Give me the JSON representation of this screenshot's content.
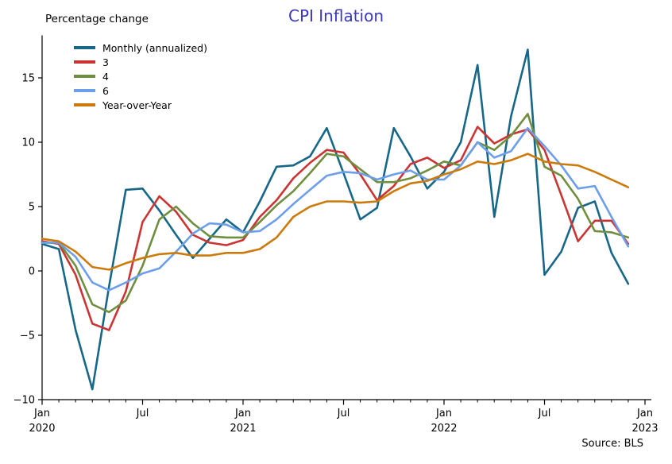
{
  "title": "CPI Inflation",
  "axis_unit_label": "Percentage change",
  "source": "Source: BLS",
  "colors": {
    "title": "#3b36c4",
    "axis": "#000000",
    "background": "#ffffff"
  },
  "chart_data": {
    "type": "line",
    "title": "CPI Inflation",
    "ylabel": "Percentage change",
    "grid": false,
    "legend_position": "upper left",
    "ylim": [
      -10,
      18.3
    ],
    "yticks": [
      -10,
      -5,
      0,
      5,
      10,
      15
    ],
    "x_major_ticks": [
      {
        "month_index": 0,
        "label": "Jan",
        "year": "2020"
      },
      {
        "month_index": 6,
        "label": "Jul",
        "year": ""
      },
      {
        "month_index": 12,
        "label": "Jan",
        "year": "2021"
      },
      {
        "month_index": 18,
        "label": "Jul",
        "year": ""
      },
      {
        "month_index": 24,
        "label": "Jan",
        "year": "2022"
      },
      {
        "month_index": 30,
        "label": "Jul",
        "year": ""
      },
      {
        "month_index": 36,
        "label": "Jan",
        "year": "2023"
      }
    ],
    "x": [
      "2020-01",
      "2020-02",
      "2020-03",
      "2020-04",
      "2020-05",
      "2020-06",
      "2020-07",
      "2020-08",
      "2020-09",
      "2020-10",
      "2020-11",
      "2020-12",
      "2021-01",
      "2021-02",
      "2021-03",
      "2021-04",
      "2021-05",
      "2021-06",
      "2021-07",
      "2021-08",
      "2021-09",
      "2021-10",
      "2021-11",
      "2021-12",
      "2022-01",
      "2022-02",
      "2022-03",
      "2022-04",
      "2022-05",
      "2022-06",
      "2022-07",
      "2022-08",
      "2022-09",
      "2022-10",
      "2022-11",
      "2022-12"
    ],
    "series": [
      {
        "name": "Monthly (annualized)",
        "color": "#176888",
        "values": [
          2.1,
          1.7,
          -4.6,
          -9.2,
          -1.2,
          6.3,
          6.4,
          4.7,
          2.8,
          1.0,
          2.5,
          4.0,
          3.0,
          5.4,
          8.1,
          8.2,
          8.9,
          11.1,
          7.6,
          4.0,
          4.9,
          11.1,
          8.9,
          6.4,
          7.7,
          10.0,
          16.0,
          4.2,
          12.0,
          17.2,
          -0.3,
          1.5,
          4.9,
          5.4,
          1.4,
          -1.0
        ]
      },
      {
        "name": "3",
        "color": "#cc3433",
        "values": [
          2.3,
          2.1,
          -0.3,
          -4.1,
          -4.6,
          -1.6,
          3.8,
          5.8,
          4.6,
          2.8,
          2.2,
          2.0,
          2.4,
          4.2,
          5.5,
          7.2,
          8.4,
          9.4,
          9.2,
          7.5,
          5.5,
          6.6,
          8.3,
          8.8,
          8.0,
          8.6,
          11.2,
          9.9,
          10.6,
          11.0,
          9.4,
          5.9,
          2.3,
          3.9,
          3.9,
          2.1
        ]
      },
      {
        "name": "4",
        "color": "#6f8f3e",
        "values": [
          2.2,
          2.2,
          0.4,
          -2.6,
          -3.2,
          -2.3,
          0.4,
          4.0,
          5.0,
          3.7,
          2.7,
          2.6,
          2.6,
          3.8,
          5.1,
          6.2,
          7.6,
          9.1,
          8.9,
          7.9,
          6.9,
          6.9,
          7.2,
          7.8,
          8.5,
          8.2,
          10.0,
          9.4,
          10.5,
          12.2,
          8.1,
          7.4,
          5.6,
          3.1,
          3.0,
          2.6
        ]
      },
      {
        "name": "6",
        "color": "#6d9eea",
        "values": [
          2.2,
          2.2,
          1.1,
          -0.9,
          -1.5,
          -0.9,
          -0.2,
          0.2,
          1.5,
          2.9,
          3.7,
          3.6,
          3.0,
          3.1,
          4.0,
          5.2,
          6.3,
          7.4,
          7.7,
          7.6,
          7.1,
          7.5,
          7.8,
          7.1,
          7.1,
          8.2,
          10.0,
          8.8,
          9.3,
          11.1,
          9.7,
          8.2,
          6.4,
          6.6,
          4.2,
          1.9
        ]
      },
      {
        "name": "Year-over-Year",
        "color": "#cd7a0c",
        "values": [
          2.5,
          2.3,
          1.5,
          0.3,
          0.1,
          0.6,
          1.0,
          1.3,
          1.4,
          1.2,
          1.2,
          1.4,
          1.4,
          1.7,
          2.6,
          4.2,
          5.0,
          5.4,
          5.4,
          5.3,
          5.4,
          6.2,
          6.8,
          7.0,
          7.5,
          7.9,
          8.5,
          8.3,
          8.6,
          9.1,
          8.5,
          8.3,
          8.2,
          7.7,
          7.1,
          6.5
        ]
      }
    ]
  }
}
